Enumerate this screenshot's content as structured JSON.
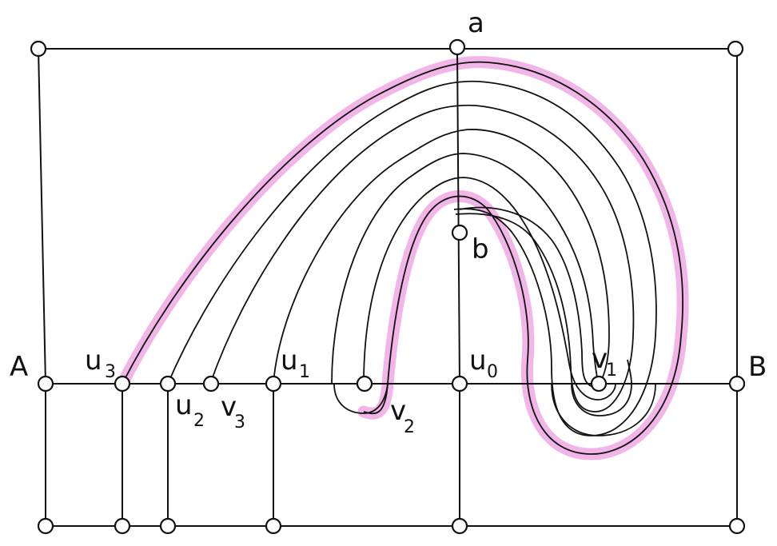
{
  "labels": {
    "a": "a",
    "b": "b",
    "A": "A",
    "B": "B",
    "u0": "u",
    "u0_sub": "0",
    "u1": "u",
    "u1_sub": "1",
    "u2": "u",
    "u2_sub": "2",
    "u3": "u",
    "u3_sub": "3",
    "v1": "v",
    "v1_sub": "1",
    "v2": "v",
    "v2_sub": "2",
    "v3": "v",
    "v3_sub": "3"
  },
  "colors": {
    "highlight": "#e878d6",
    "line": "#111111",
    "node_fill": "#ffffff"
  }
}
